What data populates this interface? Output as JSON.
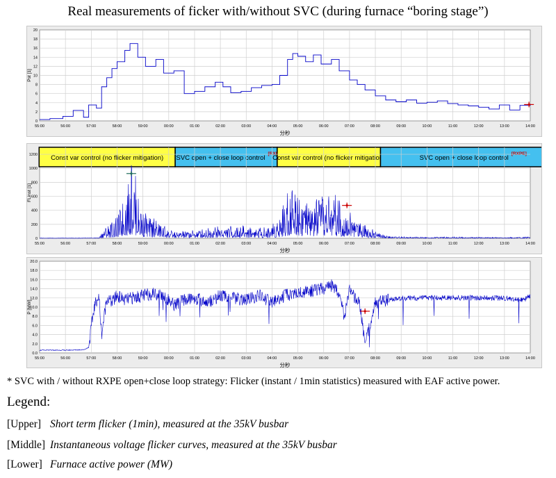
{
  "figure": {
    "title": "Real measurements of ficker with/without SVC (during furnace “boring stage”)",
    "footnote": "* SVC with / without RXPE open+close loop strategy: Flicker (instant / 1min statistics) measured with EAF active power.",
    "legend_title": "Legend:",
    "legend_rows": [
      {
        "tag": "[Upper]",
        "desc": "Short term flicker (1min), measured at the 35kV busbar"
      },
      {
        "tag": "[Middle]",
        "desc": "Instantaneous voltage flicker curves, measured at the 35kV busbar"
      },
      {
        "tag": "[Lower]",
        "desc": "Furnace active power (MW)"
      }
    ],
    "colors": {
      "line": "#0000c8",
      "marker": "#cc0000",
      "band_yellow": "#ffff44",
      "band_blue": "#44c0ef",
      "panel_bg": "#ececec"
    }
  },
  "chart_data": [
    {
      "type": "line",
      "ylabel": "Pst [1]",
      "xlabel": "分秒",
      "ylim": [
        0,
        20
      ],
      "yticks": [
        0,
        2,
        4,
        6,
        8,
        10,
        12,
        14,
        16,
        18,
        20
      ],
      "xticks": [
        "55:00",
        "56:00",
        "57:00",
        "58:00",
        "59:00",
        "00:00",
        "01:00",
        "02:00",
        "03:00",
        "04:00",
        "05:00",
        "06:00",
        "07:00",
        "08:00",
        "09:00",
        "10:00",
        "11:00",
        "12:00",
        "13:00",
        "14:00"
      ],
      "grid": true,
      "series": [
        {
          "x": [
            0.0,
            0.4,
            0.9,
            1.3,
            1.7,
            1.9,
            2.2,
            2.4,
            2.6,
            2.8,
            3.0,
            3.3,
            3.5,
            3.8,
            4.1,
            4.5,
            4.8,
            5.2,
            5.6,
            6.0,
            6.4,
            6.8,
            7.1,
            7.4,
            7.8,
            8.2,
            8.6,
            9.0,
            9.3,
            9.6,
            9.8,
            10.0,
            10.3,
            10.6,
            10.9,
            11.3,
            11.6,
            12.0,
            12.3,
            12.6,
            13.0,
            13.4,
            13.8,
            14.2,
            14.6,
            15.0,
            15.4,
            15.8,
            16.2,
            16.6,
            17.0,
            17.4,
            17.8,
            18.2,
            18.6,
            19.0
          ],
          "y": [
            0.3,
            0.5,
            1.0,
            2.3,
            0.8,
            3.5,
            2.8,
            7.5,
            9.5,
            11.5,
            13.0,
            15.5,
            17.0,
            14.0,
            12.0,
            13.5,
            10.5,
            11.0,
            6.0,
            6.5,
            7.5,
            8.5,
            7.5,
            6.2,
            6.5,
            7.3,
            7.8,
            8.0,
            10.0,
            13.5,
            14.8,
            14.2,
            13.0,
            14.5,
            12.5,
            13.5,
            11.0,
            9.0,
            8.0,
            6.8,
            5.5,
            4.6,
            4.2,
            4.6,
            3.9,
            4.1,
            4.4,
            3.8,
            3.5,
            3.3,
            3.0,
            2.6,
            3.5,
            2.4,
            3.4,
            3.6
          ]
        }
      ],
      "annotations": [
        {
          "x": 18.95,
          "y": 3.6,
          "marker": "+"
        }
      ]
    },
    {
      "type": "line",
      "ylabel": "FLinst [1]",
      "xlabel": "分秒",
      "ylim": [
        0,
        1300
      ],
      "yticks": [
        0,
        200,
        400,
        600,
        800,
        1000,
        1200
      ],
      "xticks": [
        "55:00",
        "56:00",
        "57:00",
        "58:00",
        "59:00",
        "00:00",
        "01:00",
        "02:00",
        "03:00",
        "04:00",
        "05:00",
        "06:00",
        "07:00",
        "08:00",
        "09:00",
        "10:00",
        "11:00",
        "12:00",
        "13:00",
        "14:00"
      ],
      "grid": true,
      "bands": [
        {
          "label": "Const var control (no flicker mitigation)",
          "x0": -0.02,
          "x1": 5.25,
          "color": "yellow"
        },
        {
          "label": "SVC open + close loop control",
          "tag": "[RXPE]",
          "x0": 5.25,
          "x1": 9.2,
          "color": "blue"
        },
        {
          "label": "Const var control (no flicker mitigation)",
          "x0": 9.2,
          "x1": 13.2,
          "color": "yellow"
        },
        {
          "label": "SVC open + close loop control",
          "tag": "[RXPE]",
          "x0": 13.2,
          "x1": 20.1,
          "color": "blue"
        }
      ],
      "series": [
        {
          "x": [
            0.0,
            1.0,
            2.0,
            2.3,
            2.5,
            2.8,
            3.0,
            3.2,
            3.4,
            3.5,
            3.6,
            3.7,
            3.8,
            3.9,
            4.0,
            4.2,
            4.5,
            4.8,
            5.0,
            5.3,
            5.6,
            6.0,
            6.4,
            6.8,
            7.2,
            7.6,
            8.0,
            8.4,
            8.8,
            9.0,
            9.2,
            9.4,
            9.6,
            9.8,
            10.0,
            10.2,
            10.4,
            10.6,
            10.8,
            11.0,
            11.2,
            11.4,
            11.6,
            11.8,
            12.0,
            12.2,
            12.4,
            12.6,
            12.8,
            13.0,
            13.5,
            14.0,
            15.0,
            16.0,
            17.0,
            18.0,
            19.0
          ],
          "y": [
            5,
            5,
            5,
            10,
            150,
            250,
            300,
            520,
            750,
            900,
            1080,
            950,
            620,
            540,
            380,
            300,
            260,
            180,
            120,
            90,
            100,
            120,
            150,
            180,
            170,
            160,
            180,
            170,
            140,
            180,
            270,
            450,
            700,
            820,
            760,
            600,
            500,
            480,
            560,
            570,
            650,
            600,
            560,
            450,
            400,
            310,
            280,
            250,
            150,
            90,
            30,
            25,
            15,
            20,
            15,
            15,
            20
          ]
        }
      ],
      "annotations": [
        {
          "x": 3.55,
          "y": 925,
          "marker": "+"
        },
        {
          "x": 11.9,
          "y": 470,
          "marker": "+"
        }
      ]
    },
    {
      "type": "line",
      "ylabel": "P [MW]",
      "xlabel": "分秒",
      "ylim": [
        0,
        20
      ],
      "yticks": [
        0.0,
        2.0,
        4.0,
        6.0,
        8.0,
        10.0,
        12.0,
        14.0,
        16.0,
        18.0,
        20.0
      ],
      "xticks": [
        "55:00",
        "56:00",
        "57:00",
        "58:00",
        "59:00",
        "00:00",
        "01:00",
        "02:00",
        "03:00",
        "04:00",
        "05:00",
        "06:00",
        "07:00",
        "08:00",
        "09:00",
        "10:00",
        "11:00",
        "12:00",
        "13:00",
        "14:00"
      ],
      "grid": true,
      "series": [
        {
          "x": [
            0.0,
            1.0,
            1.7,
            1.9,
            2.0,
            2.1,
            2.2,
            2.3,
            2.4,
            2.6,
            2.8,
            3.0,
            3.3,
            3.6,
            4.0,
            4.4,
            4.8,
            5.2,
            5.6,
            6.0,
            6.5,
            7.0,
            7.5,
            8.0,
            8.5,
            9.0,
            9.5,
            10.0,
            10.5,
            11.0,
            11.2,
            11.4,
            11.6,
            11.8,
            12.0,
            12.2,
            12.4,
            12.6,
            13.0,
            13.5,
            14.0,
            15.0,
            16.0,
            17.0,
            18.0,
            18.5,
            18.8,
            19.0
          ],
          "y": [
            0.6,
            0.6,
            0.7,
            1.2,
            5.5,
            9.5,
            11.5,
            12.0,
            4.0,
            12.0,
            11.0,
            12.5,
            11.5,
            12.0,
            12.5,
            13.0,
            12.5,
            10.5,
            11.5,
            12.0,
            11.0,
            12.5,
            12.0,
            11.5,
            12.5,
            11.0,
            12.5,
            13.0,
            13.5,
            14.0,
            14.8,
            14.5,
            13.0,
            8.0,
            13.5,
            12.0,
            10.5,
            2.0,
            11.0,
            11.5,
            12.0,
            12.0,
            12.0,
            12.0,
            12.0,
            11.5,
            11.8,
            12.5
          ]
        }
      ],
      "annotations": [
        {
          "x": 12.6,
          "y": 9.1,
          "marker": "+"
        }
      ]
    }
  ]
}
